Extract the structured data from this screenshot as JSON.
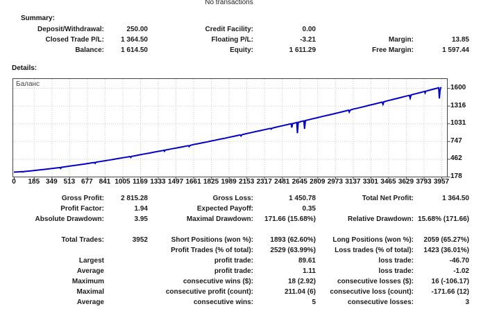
{
  "header": {
    "note": "No transactions"
  },
  "summary": {
    "title": "Summary:",
    "rows": [
      [
        "Deposit/Withdrawal:",
        "250.00",
        "Credit Facility:",
        "0.00",
        "",
        ""
      ],
      [
        "Closed Trade P/L:",
        "1 364.50",
        "Floating P/L:",
        "-3.21",
        "Margin:",
        "13.85"
      ],
      [
        "Balance:",
        "1 614.50",
        "Equity:",
        "1 611.29",
        "Free Margin:",
        "1 597.44"
      ]
    ]
  },
  "details": {
    "title": "Details:"
  },
  "chart_data": {
    "type": "line",
    "title": "Баланс",
    "xlabel": "",
    "ylabel": "",
    "grid": true,
    "xlim": [
      0,
      3957
    ],
    "ylim": [
      178,
      1756
    ],
    "x_ticks": [
      0,
      185,
      349,
      513,
      677,
      841,
      1005,
      1169,
      1333,
      1497,
      1661,
      1825,
      1989,
      2153,
      2317,
      2481,
      2645,
      2809,
      2973,
      3137,
      3301,
      3465,
      3629,
      3793,
      3957
    ],
    "y_ticks": [
      1600,
      1316,
      1031,
      747,
      462,
      178
    ],
    "colors": {
      "line": "#0000C8",
      "grid": "#C9C9C9",
      "border": "#444444"
    },
    "series": [
      {
        "name": "Баланс",
        "points": [
          [
            0,
            250
          ],
          [
            60,
            256
          ],
          [
            78,
            259
          ],
          [
            84,
            252
          ],
          [
            95,
            260
          ],
          [
            140,
            267
          ],
          [
            185,
            275
          ],
          [
            240,
            286
          ],
          [
            300,
            298
          ],
          [
            360,
            310
          ],
          [
            420,
            323
          ],
          [
            428,
            325
          ],
          [
            433,
            310
          ],
          [
            440,
            327
          ],
          [
            470,
            335
          ],
          [
            513,
            346
          ],
          [
            560,
            357
          ],
          [
            600,
            367
          ],
          [
            640,
            377
          ],
          [
            677,
            387
          ],
          [
            715,
            397
          ],
          [
            745,
            405
          ],
          [
            752,
            391
          ],
          [
            760,
            409
          ],
          [
            800,
            420
          ],
          [
            841,
            432
          ],
          [
            880,
            443
          ],
          [
            920,
            455
          ],
          [
            960,
            467
          ],
          [
            1005,
            480
          ],
          [
            1050,
            493
          ],
          [
            1075,
            500
          ],
          [
            1082,
            486
          ],
          [
            1090,
            503
          ],
          [
            1130,
            516
          ],
          [
            1169,
            529
          ],
          [
            1210,
            542
          ],
          [
            1250,
            555
          ],
          [
            1290,
            568
          ],
          [
            1333,
            582
          ],
          [
            1380,
            597
          ],
          [
            1388,
            601
          ],
          [
            1393,
            586
          ],
          [
            1400,
            603
          ],
          [
            1450,
            620
          ],
          [
            1497,
            635
          ],
          [
            1540,
            649
          ],
          [
            1580,
            663
          ],
          [
            1615,
            675
          ],
          [
            1622,
            660
          ],
          [
            1630,
            678
          ],
          [
            1661,
            692
          ],
          [
            1700,
            705
          ],
          [
            1750,
            722
          ],
          [
            1790,
            736
          ],
          [
            1825,
            749
          ],
          [
            1870,
            765
          ],
          [
            1910,
            779
          ],
          [
            1950,
            793
          ],
          [
            1989,
            808
          ],
          [
            2030,
            823
          ],
          [
            2070,
            838
          ],
          [
            2095,
            847
          ],
          [
            2102,
            830
          ],
          [
            2110,
            850
          ],
          [
            2153,
            868
          ],
          [
            2200,
            886
          ],
          [
            2240,
            901
          ],
          [
            2280,
            916
          ],
          [
            2317,
            930
          ],
          [
            2360,
            947
          ],
          [
            2375,
            953
          ],
          [
            2382,
            940
          ],
          [
            2390,
            956
          ],
          [
            2440,
            977
          ],
          [
            2481,
            993
          ],
          [
            2520,
            1008
          ],
          [
            2560,
            1024
          ],
          [
            2566,
            1027
          ],
          [
            2572,
            965
          ],
          [
            2580,
            1029
          ],
          [
            2610,
            1043
          ],
          [
            2618,
            1047
          ],
          [
            2624,
            875
          ],
          [
            2632,
            1049
          ],
          [
            2660,
            1063
          ],
          [
            2684,
            1073
          ],
          [
            2690,
            945
          ],
          [
            2698,
            1078
          ],
          [
            2730,
            1092
          ],
          [
            2770,
            1108
          ],
          [
            2809,
            1124
          ],
          [
            2850,
            1141
          ],
          [
            2900,
            1161
          ],
          [
            2940,
            1177
          ],
          [
            2973,
            1190
          ],
          [
            3010,
            1206
          ],
          [
            3050,
            1223
          ],
          [
            3090,
            1240
          ],
          [
            3098,
            1243
          ],
          [
            3104,
            1215
          ],
          [
            3112,
            1246
          ],
          [
            3137,
            1259
          ],
          [
            3180,
            1276
          ],
          [
            3220,
            1293
          ],
          [
            3260,
            1310
          ],
          [
            3301,
            1328
          ],
          [
            3340,
            1344
          ],
          [
            3380,
            1361
          ],
          [
            3408,
            1374
          ],
          [
            3416,
            1337
          ],
          [
            3424,
            1378
          ],
          [
            3465,
            1398
          ],
          [
            3510,
            1417
          ],
          [
            3550,
            1434
          ],
          [
            3590,
            1451
          ],
          [
            3629,
            1469
          ],
          [
            3660,
            1482
          ],
          [
            3668,
            1436
          ],
          [
            3676,
            1489
          ],
          [
            3710,
            1504
          ],
          [
            3750,
            1522
          ],
          [
            3793,
            1541
          ],
          [
            3800,
            1545
          ],
          [
            3806,
            1520
          ],
          [
            3812,
            1548
          ],
          [
            3860,
            1571
          ],
          [
            3900,
            1589
          ],
          [
            3925,
            1600
          ],
          [
            3932,
            1604
          ],
          [
            3938,
            1432
          ],
          [
            3944,
            1560
          ],
          [
            3952,
            1614.5
          ]
        ]
      }
    ]
  },
  "stats": {
    "rows": [
      [
        "Gross Profit:",
        "2 815.28",
        "Gross Loss:",
        "1 450.78",
        "Total Net Profit:",
        "1 364.50"
      ],
      [
        "Profit Factor:",
        "1.94",
        "Expected Payoff:",
        "0.35",
        "",
        ""
      ],
      [
        "Absolute Drawdown:",
        "3.95",
        "Maximal Drawdown:",
        "171.66 (15.68%)",
        "Relative Drawdown:",
        "15.68% (171.66)"
      ],
      [
        "",
        "",
        "",
        "",
        "",
        ""
      ],
      [
        "Total Trades:",
        "3952",
        "Short Positions (won %):",
        "1893 (62.60%)",
        "Long Positions (won %):",
        "2059 (65.27%)"
      ],
      [
        "",
        "",
        "Profit Trades (% of total):",
        "2529 (63.99%)",
        "Loss trades (% of total):",
        "1423 (36.01%)"
      ],
      [
        "Largest",
        "",
        "profit trade:",
        "89.61",
        "loss trade:",
        "-46.70"
      ],
      [
        "Average",
        "",
        "profit trade:",
        "1.11",
        "loss trade:",
        "-1.02"
      ],
      [
        "Maximum",
        "",
        "consecutive wins ($):",
        "18 (2.92)",
        "consecutive losses ($):",
        "16 (-106.17)"
      ],
      [
        "Maximal",
        "",
        "consecutive profit (count):",
        "211.04 (6)",
        "consecutive loss (count):",
        "-171.66 (12)"
      ],
      [
        "Average",
        "",
        "consecutive wins:",
        "5",
        "consecutive losses:",
        "3"
      ]
    ]
  }
}
